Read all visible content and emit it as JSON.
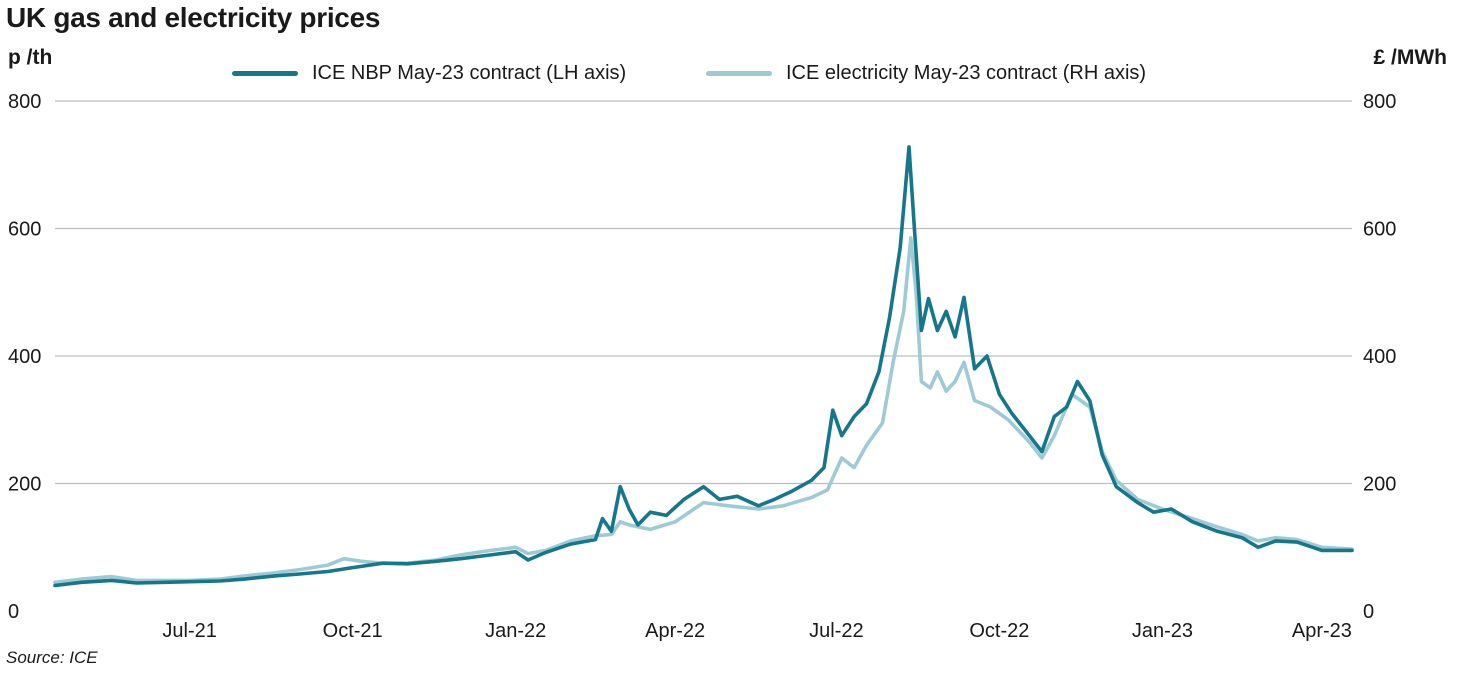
{
  "title": "UK gas and electricity prices",
  "source": "Source: ICE",
  "chart_data": {
    "type": "line",
    "title": "UK gas and electricity prices",
    "ylabel_left": "p /th",
    "ylabel_right": "£ /MWh",
    "ylim_left": [
      0,
      800
    ],
    "ylim_right": [
      0,
      800
    ],
    "yticks_left": [
      "0",
      "200",
      "400",
      "600",
      "800"
    ],
    "yticks_right": [
      "0",
      "200",
      "400",
      "600",
      "800"
    ],
    "xticks": [
      "Jul-21",
      "Oct-21",
      "Jan-22",
      "Apr-22",
      "Jul-22",
      "Oct-22",
      "Jan-23",
      "Apr-23"
    ],
    "xlim": [
      "2021-04-30",
      "2023-05-02"
    ],
    "grid": true,
    "legend_position": "top-center",
    "series": [
      {
        "name": "ICE NBP May-23 contract (LH axis)",
        "axis": "left",
        "color": "#16768a",
        "points": [
          [
            "2021-04-30",
            40
          ],
          [
            "2021-05-15",
            45
          ],
          [
            "2021-06-01",
            48
          ],
          [
            "2021-06-15",
            44
          ],
          [
            "2021-07-01",
            45
          ],
          [
            "2021-07-15",
            46
          ],
          [
            "2021-08-01",
            47
          ],
          [
            "2021-08-15",
            50
          ],
          [
            "2021-09-01",
            55
          ],
          [
            "2021-09-15",
            58
          ],
          [
            "2021-10-01",
            62
          ],
          [
            "2021-10-15",
            68
          ],
          [
            "2021-11-01",
            75
          ],
          [
            "2021-11-15",
            74
          ],
          [
            "2021-12-01",
            78
          ],
          [
            "2021-12-15",
            82
          ],
          [
            "2022-01-01",
            88
          ],
          [
            "2022-01-15",
            93
          ],
          [
            "2022-01-22",
            80
          ],
          [
            "2022-02-01",
            92
          ],
          [
            "2022-02-15",
            105
          ],
          [
            "2022-03-01",
            112
          ],
          [
            "2022-03-05",
            145
          ],
          [
            "2022-03-10",
            125
          ],
          [
            "2022-03-15",
            195
          ],
          [
            "2022-03-20",
            160
          ],
          [
            "2022-03-25",
            135
          ],
          [
            "2022-04-01",
            155
          ],
          [
            "2022-04-10",
            150
          ],
          [
            "2022-04-20",
            175
          ],
          [
            "2022-05-01",
            195
          ],
          [
            "2022-05-10",
            175
          ],
          [
            "2022-05-20",
            180
          ],
          [
            "2022-06-01",
            165
          ],
          [
            "2022-06-10",
            175
          ],
          [
            "2022-06-20",
            188
          ],
          [
            "2022-07-01",
            205
          ],
          [
            "2022-07-08",
            225
          ],
          [
            "2022-07-13",
            315
          ],
          [
            "2022-07-18",
            275
          ],
          [
            "2022-07-25",
            305
          ],
          [
            "2022-08-01",
            325
          ],
          [
            "2022-08-08",
            375
          ],
          [
            "2022-08-14",
            460
          ],
          [
            "2022-08-20",
            570
          ],
          [
            "2022-08-25",
            728
          ],
          [
            "2022-08-28",
            600
          ],
          [
            "2022-09-01",
            440
          ],
          [
            "2022-09-05",
            490
          ],
          [
            "2022-09-10",
            440
          ],
          [
            "2022-09-15",
            470
          ],
          [
            "2022-09-20",
            430
          ],
          [
            "2022-09-25",
            492
          ],
          [
            "2022-10-01",
            380
          ],
          [
            "2022-10-08",
            400
          ],
          [
            "2022-10-15",
            340
          ],
          [
            "2022-10-22",
            310
          ],
          [
            "2022-11-01",
            275
          ],
          [
            "2022-11-08",
            250
          ],
          [
            "2022-11-15",
            305
          ],
          [
            "2022-11-22",
            320
          ],
          [
            "2022-11-28",
            360
          ],
          [
            "2022-12-05",
            330
          ],
          [
            "2022-12-12",
            245
          ],
          [
            "2022-12-20",
            195
          ],
          [
            "2023-01-01",
            170
          ],
          [
            "2023-01-10",
            155
          ],
          [
            "2023-01-20",
            160
          ],
          [
            "2023-02-01",
            140
          ],
          [
            "2023-02-15",
            125
          ],
          [
            "2023-03-01",
            115
          ],
          [
            "2023-03-10",
            100
          ],
          [
            "2023-03-20",
            110
          ],
          [
            "2023-04-01",
            108
          ],
          [
            "2023-04-15",
            95
          ],
          [
            "2023-05-02",
            95
          ]
        ]
      },
      {
        "name": "ICE electricity May-23 contract (RH axis)",
        "axis": "right",
        "color": "#9ecad5",
        "points": [
          [
            "2021-04-30",
            45
          ],
          [
            "2021-05-15",
            50
          ],
          [
            "2021-06-01",
            54
          ],
          [
            "2021-06-15",
            48
          ],
          [
            "2021-07-01",
            48
          ],
          [
            "2021-07-15",
            48
          ],
          [
            "2021-08-01",
            50
          ],
          [
            "2021-08-15",
            55
          ],
          [
            "2021-09-01",
            60
          ],
          [
            "2021-09-15",
            65
          ],
          [
            "2021-10-01",
            72
          ],
          [
            "2021-10-10",
            82
          ],
          [
            "2021-10-20",
            78
          ],
          [
            "2021-11-01",
            75
          ],
          [
            "2021-11-15",
            75
          ],
          [
            "2021-12-01",
            80
          ],
          [
            "2021-12-15",
            88
          ],
          [
            "2022-01-01",
            95
          ],
          [
            "2022-01-15",
            100
          ],
          [
            "2022-01-22",
            90
          ],
          [
            "2022-02-01",
            95
          ],
          [
            "2022-02-15",
            110
          ],
          [
            "2022-03-01",
            118
          ],
          [
            "2022-03-10",
            120
          ],
          [
            "2022-03-15",
            140
          ],
          [
            "2022-03-20",
            135
          ],
          [
            "2022-04-01",
            128
          ],
          [
            "2022-04-15",
            140
          ],
          [
            "2022-05-01",
            170
          ],
          [
            "2022-05-15",
            165
          ],
          [
            "2022-06-01",
            160
          ],
          [
            "2022-06-15",
            165
          ],
          [
            "2022-07-01",
            178
          ],
          [
            "2022-07-10",
            190
          ],
          [
            "2022-07-18",
            240
          ],
          [
            "2022-07-25",
            225
          ],
          [
            "2022-08-01",
            260
          ],
          [
            "2022-08-10",
            295
          ],
          [
            "2022-08-16",
            390
          ],
          [
            "2022-08-22",
            470
          ],
          [
            "2022-08-26",
            585
          ],
          [
            "2022-08-29",
            500
          ],
          [
            "2022-09-01",
            360
          ],
          [
            "2022-09-06",
            350
          ],
          [
            "2022-09-10",
            375
          ],
          [
            "2022-09-15",
            345
          ],
          [
            "2022-09-20",
            360
          ],
          [
            "2022-09-25",
            390
          ],
          [
            "2022-10-01",
            330
          ],
          [
            "2022-10-10",
            320
          ],
          [
            "2022-10-20",
            300
          ],
          [
            "2022-11-01",
            265
          ],
          [
            "2022-11-08",
            240
          ],
          [
            "2022-11-15",
            275
          ],
          [
            "2022-11-25",
            340
          ],
          [
            "2022-12-05",
            320
          ],
          [
            "2022-12-12",
            250
          ],
          [
            "2022-12-20",
            205
          ],
          [
            "2023-01-01",
            175
          ],
          [
            "2023-01-15",
            160
          ],
          [
            "2023-02-01",
            145
          ],
          [
            "2023-02-15",
            132
          ],
          [
            "2023-03-01",
            120
          ],
          [
            "2023-03-10",
            110
          ],
          [
            "2023-03-20",
            115
          ],
          [
            "2023-04-01",
            112
          ],
          [
            "2023-04-15",
            100
          ],
          [
            "2023-05-02",
            97
          ]
        ]
      }
    ]
  }
}
